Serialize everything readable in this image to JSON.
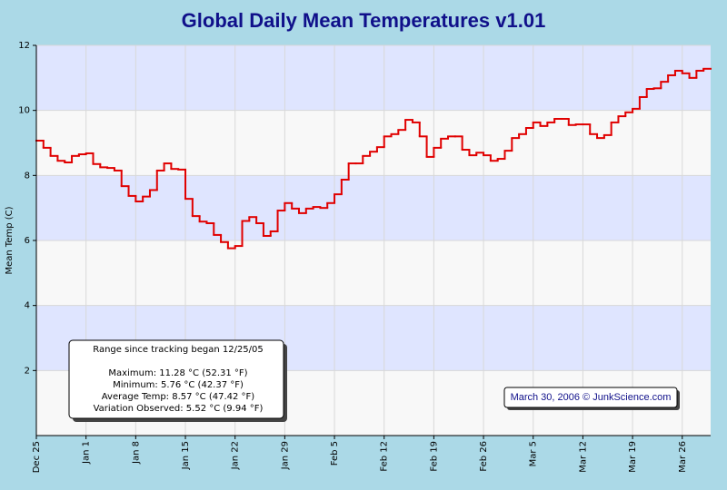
{
  "chart_data": {
    "type": "line",
    "drawstyle": "steps-post",
    "title": "Global Daily Mean Temperatures v1.01",
    "ylabel": "Mean Temp (C)",
    "categories": [
      "Dec 25",
      null,
      null,
      null,
      null,
      null,
      null,
      "Jan 1",
      null,
      null,
      null,
      null,
      null,
      null,
      "Jan 8",
      null,
      null,
      null,
      null,
      null,
      null,
      "Jan 15",
      null,
      null,
      null,
      null,
      null,
      null,
      "Jan 22",
      null,
      null,
      null,
      null,
      null,
      null,
      "Jan 29",
      null,
      null,
      null,
      null,
      null,
      null,
      "Feb 5",
      null,
      null,
      null,
      null,
      null,
      null,
      "Feb 12",
      null,
      null,
      null,
      null,
      null,
      null,
      "Feb 19",
      null,
      null,
      null,
      null,
      null,
      null,
      "Feb 26",
      null,
      null,
      null,
      null,
      null,
      null,
      "Mar 5",
      null,
      null,
      null,
      null,
      null,
      null,
      "Mar 12",
      null,
      null,
      null,
      null,
      null,
      null,
      "Mar 19",
      null,
      null,
      null,
      null,
      null,
      null,
      "Mar 26",
      null,
      null,
      null
    ],
    "values": [
      9.07,
      8.85,
      8.6,
      8.45,
      8.4,
      8.6,
      8.65,
      8.68,
      8.35,
      8.25,
      8.23,
      8.15,
      7.67,
      7.37,
      7.2,
      7.35,
      7.55,
      8.15,
      8.37,
      8.2,
      8.18,
      7.28,
      6.75,
      6.58,
      6.53,
      6.17,
      5.95,
      5.76,
      5.83,
      6.6,
      6.72,
      6.53,
      6.14,
      6.28,
      6.92,
      7.15,
      6.98,
      6.84,
      6.98,
      7.03,
      7.0,
      7.15,
      7.42,
      7.87,
      8.37,
      8.37,
      8.6,
      8.73,
      8.87,
      9.2,
      9.27,
      9.4,
      9.71,
      9.63,
      9.2,
      8.57,
      8.85,
      9.13,
      9.2,
      9.2,
      8.79,
      8.62,
      8.7,
      8.62,
      8.45,
      8.51,
      8.76,
      9.15,
      9.27,
      9.46,
      9.63,
      9.52,
      9.63,
      9.74,
      9.74,
      9.55,
      9.57,
      9.57,
      9.27,
      9.15,
      9.24,
      9.63,
      9.82,
      9.94,
      10.05,
      10.41,
      10.66,
      10.68,
      10.88,
      11.08,
      11.22,
      11.14,
      11.0,
      11.22,
      11.28
    ],
    "color": "#e00000",
    "ylim": [
      0,
      12
    ],
    "yticks": [
      2,
      4,
      6,
      8,
      10,
      12
    ],
    "grid": true,
    "band_colors": [
      "#dfe5ff",
      "#f8f8f8"
    ],
    "annotations": {
      "range_box": [
        "Range since tracking began 12/25/05",
        "Maximum: 11.28 °C (52.31 °F)",
        "Minimum: 5.76 °C (42.37 °F)",
        "Average Temp: 8.57 °C (47.42 °F)",
        "Variation Observed: 5.52 °C (9.94 °F)"
      ],
      "credit": "March 30, 2006 © JunkScience.com"
    }
  }
}
